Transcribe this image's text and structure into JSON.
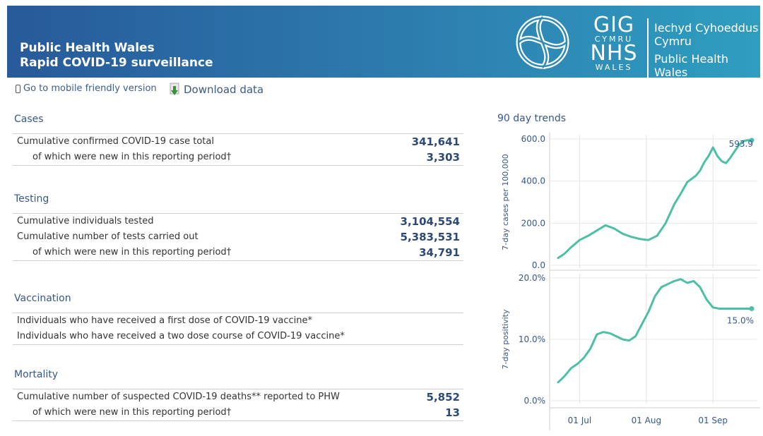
{
  "header": {
    "title_line1": "Public Health Wales",
    "title_line2": "Rapid COVID-19 surveillance",
    "logo": {
      "gig": "GIG",
      "cymru": "CYMRU",
      "nhs": "NHS",
      "wales": "WALES",
      "welsh_name_line1": "Iechyd Cyhoeddus",
      "welsh_name_line2": "Cymru",
      "english_name_line1": "Public Health",
      "english_name_line2": "Wales"
    }
  },
  "toolbar": {
    "mobile_link": "Go to mobile friendly version",
    "download_link": "Download data"
  },
  "sections": {
    "cases": {
      "title": "Cases",
      "rows": [
        {
          "label": "Cumulative confirmed COVID-19 case total",
          "value": "341,641"
        },
        {
          "label": "of which were new in this reporting period†",
          "value": "3,303"
        }
      ]
    },
    "testing": {
      "title": "Testing",
      "rows": [
        {
          "label": "Cumulative individuals tested",
          "value": "3,104,554"
        },
        {
          "label": "Cumulative number of tests carried out",
          "value": "5,383,531"
        },
        {
          "label": "of which were new in this reporting period†",
          "value": "34,791"
        }
      ]
    },
    "vaccination": {
      "title": "Vaccination",
      "rows": [
        {
          "label": "Individuals who have received a first dose of COVID-19 vaccine*",
          "value": ""
        },
        {
          "label": "Individuals who have received a two dose course of COVID-19 vaccine*",
          "value": ""
        }
      ]
    },
    "mortality": {
      "title": "Mortality",
      "rows": [
        {
          "label": "Cumulative number of suspected COVID-19 deaths** reported to PHW",
          "value": "5,852"
        },
        {
          "label": "of which were new in this reporting period†",
          "value": "13"
        }
      ]
    }
  },
  "trends": {
    "title": "90 day trends"
  },
  "colors": {
    "line": "#4dbfa6",
    "heading": "#35578a",
    "value": "#2c4a75",
    "banner_start": "#275a9a",
    "banner_end": "#2f9ec0"
  },
  "chart_data": [
    {
      "type": "line",
      "title": "",
      "ylabel": "7-day cases per 100,000",
      "ylim": [
        0,
        600
      ],
      "yticks": [
        0,
        200,
        400,
        600
      ],
      "ytick_labels": [
        "0.0",
        "200.0",
        "400.0",
        "600.0"
      ],
      "xlabel": "",
      "x_tick_labels": [
        "01 Jul",
        "01 Aug",
        "01 Sep"
      ],
      "x_tick_day_index": [
        10,
        41,
        72
      ],
      "end_label": "593.9",
      "x_day_index": [
        0,
        3,
        6,
        10,
        14,
        18,
        22,
        26,
        30,
        34,
        38,
        42,
        46,
        50,
        54,
        57,
        60,
        62,
        64,
        66,
        68,
        70,
        72,
        74,
        76,
        78,
        80,
        82,
        84,
        86,
        88,
        90
      ],
      "values": [
        35,
        55,
        85,
        120,
        140,
        165,
        190,
        175,
        150,
        135,
        125,
        120,
        140,
        200,
        290,
        340,
        395,
        410,
        425,
        450,
        490,
        520,
        560,
        520,
        495,
        485,
        510,
        540,
        570,
        590,
        593.9,
        593.9
      ]
    },
    {
      "type": "line",
      "title": "",
      "ylabel": "7-day positivity",
      "ylim": [
        0,
        20
      ],
      "yticks": [
        0,
        10,
        20
      ],
      "ytick_labels": [
        "0.0%",
        "10.0%",
        "20.0%"
      ],
      "xlabel": "",
      "x_tick_labels": [
        "01 Jul",
        "01 Aug",
        "01 Sep"
      ],
      "x_tick_day_index": [
        10,
        41,
        72
      ],
      "end_label": "15.0%",
      "x_day_index": [
        0,
        3,
        6,
        9,
        12,
        15,
        18,
        21,
        24,
        27,
        30,
        33,
        36,
        39,
        42,
        45,
        48,
        51,
        54,
        57,
        60,
        63,
        66,
        69,
        72,
        75,
        78,
        80,
        82,
        84,
        86,
        88,
        90
      ],
      "values": [
        3,
        4,
        5.3,
        6,
        7,
        8.5,
        10.8,
        11.2,
        11.0,
        10.5,
        10,
        9.8,
        10.5,
        12.5,
        14.5,
        17,
        18.5,
        19,
        19.5,
        19.8,
        19.2,
        19.5,
        18.5,
        16.5,
        15.2,
        15.0,
        15.0,
        15.0,
        15.0,
        15.0,
        15.0,
        15.0,
        15.0
      ]
    }
  ]
}
